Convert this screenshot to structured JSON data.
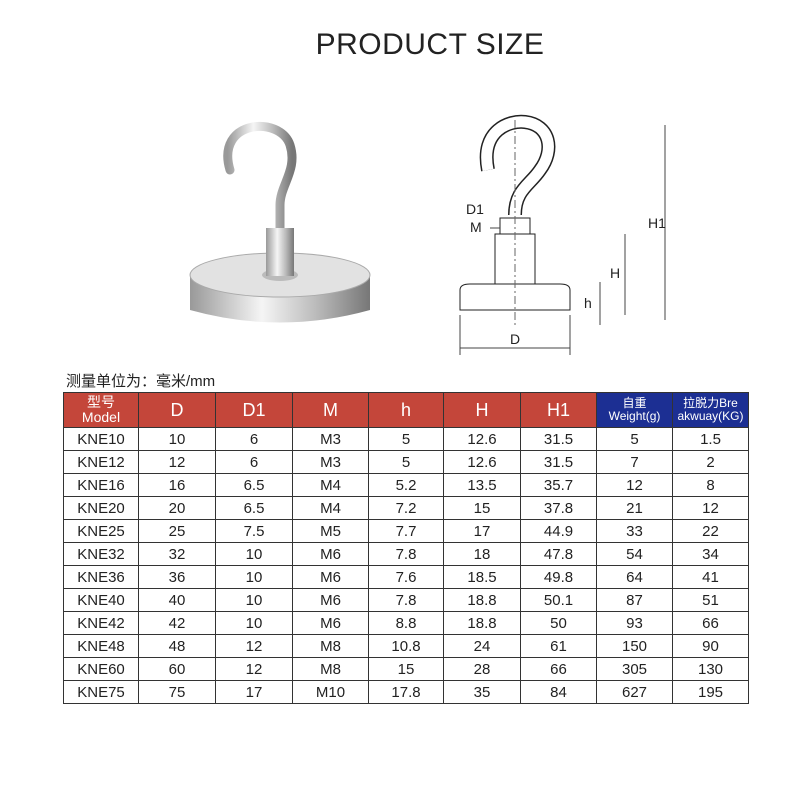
{
  "title": "PRODUCT SIZE",
  "diagram_labels": {
    "D1": "D1",
    "M": "M",
    "H1": "H1",
    "H": "H",
    "h": "h",
    "D": "D"
  },
  "unit_note": "测量单位为：毫米/mm",
  "table": {
    "headers": [
      [
        "型号",
        "Model"
      ],
      [
        "D"
      ],
      [
        "D1"
      ],
      [
        "M"
      ],
      [
        "h"
      ],
      [
        "H"
      ],
      [
        "H1"
      ],
      [
        "自重",
        "Weight(g)"
      ],
      [
        "拉脱力Bre",
        "akwuay(KG)"
      ]
    ],
    "rows": [
      [
        "KNE10",
        "10",
        "6",
        "M3",
        "5",
        "12.6",
        "31.5",
        "5",
        "1.5"
      ],
      [
        "KNE12",
        "12",
        "6",
        "M3",
        "5",
        "12.6",
        "31.5",
        "7",
        "2"
      ],
      [
        "KNE16",
        "16",
        "6.5",
        "M4",
        "5.2",
        "13.5",
        "35.7",
        "12",
        "8"
      ],
      [
        "KNE20",
        "20",
        "6.5",
        "M4",
        "7.2",
        "15",
        "37.8",
        "21",
        "12"
      ],
      [
        "KNE25",
        "25",
        "7.5",
        "M5",
        "7.7",
        "17",
        "44.9",
        "33",
        "22"
      ],
      [
        "KNE32",
        "32",
        "10",
        "M6",
        "7.8",
        "18",
        "47.8",
        "54",
        "34"
      ],
      [
        "KNE36",
        "36",
        "10",
        "M6",
        "7.6",
        "18.5",
        "49.8",
        "64",
        "41"
      ],
      [
        "KNE40",
        "40",
        "10",
        "M6",
        "7.8",
        "18.8",
        "50.1",
        "87",
        "51"
      ],
      [
        "KNE42",
        "42",
        "10",
        "M6",
        "8.8",
        "18.8",
        "50",
        "93",
        "66"
      ],
      [
        "KNE48",
        "48",
        "12",
        "M8",
        "10.8",
        "24",
        "61",
        "150",
        "90"
      ],
      [
        "KNE60",
        "60",
        "12",
        "M8",
        "15",
        "28",
        "66",
        "305",
        "130"
      ],
      [
        "KNE75",
        "75",
        "17",
        "M10",
        "17.8",
        "35",
        "84",
        "627",
        "195"
      ]
    ]
  },
  "colors": {
    "header_red": "#c4463a",
    "header_blue": "#1c2f93"
  }
}
